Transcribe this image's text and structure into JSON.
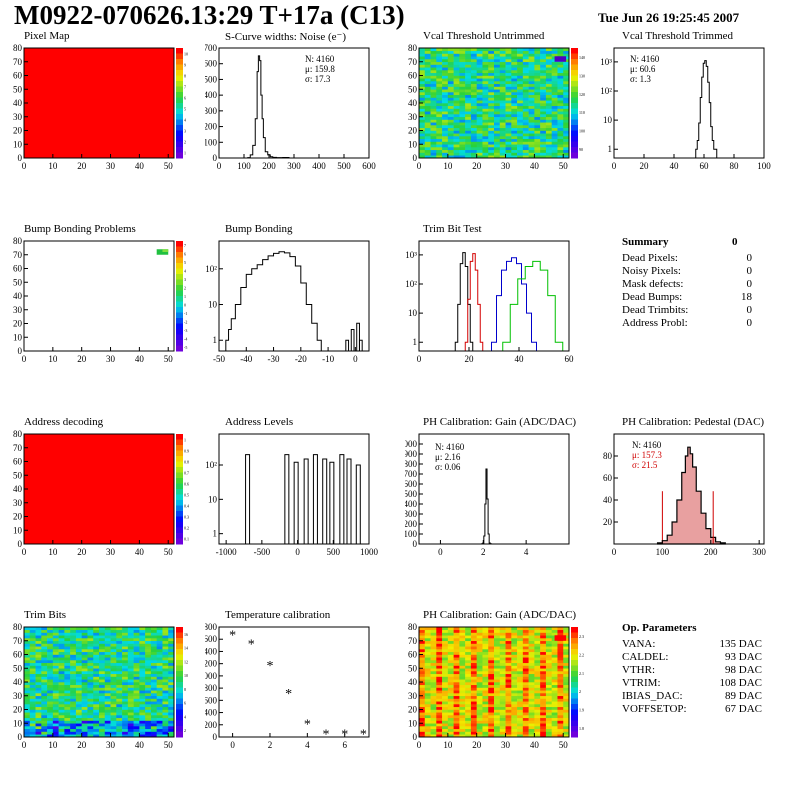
{
  "header": {
    "title": "M0922-070626.13:29 T+17a (C13)",
    "date": "Tue Jun 26 19:25:45 2007"
  },
  "colors": {
    "red_map": "#ff0000",
    "histo_line": "#000000",
    "trim_red": "#d40000",
    "trim_blue": "#0000cc",
    "trim_green": "#00c000",
    "pedestal_fill": "#e8a0a0"
  },
  "panels": {
    "pixel_map": {
      "title": "Pixel Map"
    },
    "scurve": {
      "title": "S-Curve widths: Noise (e⁻)",
      "stats": [
        "N: 4160",
        "μ: 159.8",
        "σ: 17.3"
      ]
    },
    "vcal_untrimmed": {
      "title": "Vcal Threshold Untrimmed"
    },
    "vcal_trimmed": {
      "title": "Vcal Threshold Trimmed",
      "stats": [
        "N: 4160",
        "μ: 60.6",
        "σ:  1.3"
      ]
    },
    "bump_problems": {
      "title": "Bump Bonding Problems"
    },
    "bump_bonding": {
      "title": "Bump Bonding"
    },
    "trim_bit_test": {
      "title": "Trim Bit Test"
    },
    "address_decoding": {
      "title": "Address decoding"
    },
    "address_levels": {
      "title": "Address Levels"
    },
    "ph_gain": {
      "title": "PH Calibration: Gain (ADC/DAC)",
      "stats": [
        "N: 4160",
        "μ: 2.16",
        "σ: 0.06"
      ]
    },
    "ph_pedestal": {
      "title": "PH Calibration: Pedestal (DAC)",
      "stats": [
        "N: 4160",
        "μ: 157.3",
        "σ: 21.5"
      ]
    },
    "trim_bits": {
      "title": "Trim Bits"
    },
    "temperature": {
      "title": "Temperature calibration"
    },
    "ph_gain_map": {
      "title": "PH Calibration: Gain (ADC/DAC)"
    }
  },
  "summary": {
    "title": "Summary",
    "total": "0",
    "rows": [
      {
        "label": "Dead Pixels:",
        "value": "0"
      },
      {
        "label": "Noisy Pixels:",
        "value": "0"
      },
      {
        "label": "Mask defects:",
        "value": "0"
      },
      {
        "label": "Dead Bumps:",
        "value": "18"
      },
      {
        "label": "Dead Trimbits:",
        "value": "0"
      },
      {
        "label": "Address Probl:",
        "value": "0"
      }
    ]
  },
  "op_params": {
    "title": "Op. Parameters",
    "rows": [
      {
        "label": "VANA:",
        "value": "135 DAC"
      },
      {
        "label": "CALDEL:",
        "value": "93 DAC"
      },
      {
        "label": "VTHR:",
        "value": "98 DAC"
      },
      {
        "label": "VTRIM:",
        "value": "108 DAC"
      },
      {
        "label": "IBIAS_DAC:",
        "value": "89 DAC"
      },
      {
        "label": "VOFFSETOP:",
        "value": "67 DAC"
      }
    ]
  },
  "chart_data": [
    {
      "id": "pixel_map",
      "type": "heatmap",
      "title": "Pixel Map",
      "xlim": [
        0,
        52
      ],
      "ylim": [
        0,
        80
      ],
      "xticks": [
        0,
        10,
        20,
        30,
        40,
        50
      ],
      "yticks": [
        0,
        10,
        20,
        30,
        40,
        50,
        60,
        70,
        80
      ],
      "fill": "uniform-max",
      "colorbar_ticks": [
        "10",
        "9",
        "8",
        "7",
        "6",
        "5",
        "4",
        "3",
        "2",
        "1"
      ]
    },
    {
      "id": "scurve",
      "type": "line",
      "title": "S-Curve widths: Noise (e⁻)",
      "xlim": [
        0,
        600
      ],
      "ylim": [
        0,
        700
      ],
      "xticks": [
        0,
        100,
        200,
        300,
        400,
        500,
        600
      ],
      "yticks": [
        0,
        100,
        200,
        300,
        400,
        500,
        600,
        700
      ],
      "x": [
        110,
        120,
        130,
        140,
        150,
        155,
        160,
        165,
        170,
        175,
        180,
        190,
        200,
        210,
        220,
        240,
        270,
        290
      ],
      "y": [
        0,
        2,
        20,
        80,
        250,
        550,
        650,
        620,
        400,
        250,
        130,
        40,
        20,
        8,
        4,
        2,
        3,
        0
      ]
    },
    {
      "id": "vcal_untrimmed",
      "type": "heatmap",
      "title": "Vcal Threshold Untrimmed",
      "xlim": [
        0,
        52
      ],
      "ylim": [
        0,
        80
      ],
      "xticks": [
        0,
        10,
        20,
        30,
        40,
        50
      ],
      "yticks": [
        0,
        10,
        20,
        30,
        40,
        50,
        60,
        70,
        80
      ],
      "fill": "noisy-mid",
      "colorbar_ticks": [
        "140",
        "130",
        "120",
        "110",
        "100",
        "90"
      ]
    },
    {
      "id": "vcal_trimmed",
      "type": "line",
      "title": "Vcal Threshold Trimmed",
      "log_y": true,
      "xlim": [
        0,
        100
      ],
      "ylim": [
        0.5,
        3000
      ],
      "xticks": [
        0,
        20,
        40,
        60,
        80,
        100
      ],
      "yticks": [
        "1",
        "10",
        "10²",
        "10³"
      ],
      "x": [
        55,
        56,
        57,
        58,
        59,
        60,
        61,
        62,
        63,
        64,
        65,
        66,
        67,
        68
      ],
      "y": [
        1,
        2,
        8,
        60,
        300,
        900,
        1100,
        700,
        200,
        40,
        6,
        2,
        1,
        1
      ]
    },
    {
      "id": "bump_problems",
      "type": "heatmap",
      "title": "Bump Bonding Problems",
      "xlim": [
        0,
        52
      ],
      "ylim": [
        0,
        80
      ],
      "xticks": [
        0,
        10,
        20,
        30,
        40,
        50
      ],
      "yticks": [
        0,
        10,
        20,
        30,
        40,
        50,
        60,
        70,
        80
      ],
      "fill": "sparse-corner",
      "colorbar_ticks": [
        "7",
        "6",
        "5",
        "4",
        "3",
        "2",
        "1",
        "0",
        "-1",
        "-2",
        "-3",
        "-4",
        "-5"
      ]
    },
    {
      "id": "bump_bonding",
      "type": "line",
      "title": "Bump Bonding",
      "log_y": true,
      "xlim": [
        -50,
        5
      ],
      "ylim": [
        0.5,
        600
      ],
      "xticks": [
        -50,
        -40,
        -30,
        -20,
        -10,
        0
      ],
      "yticks": [
        "1",
        "10",
        "10²"
      ],
      "x": [
        -47,
        -46,
        -45,
        -43,
        -41,
        -39,
        -37,
        -35,
        -33,
        -31,
        -29,
        -27,
        -25,
        -23,
        -21,
        -19,
        -17,
        -15,
        -13,
        -12
      ],
      "y": [
        1,
        2,
        4,
        10,
        30,
        70,
        100,
        130,
        180,
        230,
        270,
        300,
        280,
        220,
        120,
        40,
        10,
        3,
        1,
        0.5
      ]
    },
    {
      "id": "trim_bit_test",
      "type": "line",
      "title": "Trim Bit Test",
      "log_y": true,
      "xlim": [
        0,
        60
      ],
      "ylim": [
        0.5,
        3000
      ],
      "xticks": [
        0,
        20,
        40,
        60
      ],
      "yticks": [
        "1",
        "10",
        "10²",
        "10³"
      ],
      "series": [
        {
          "color": "black",
          "x": [
            15,
            16,
            17,
            18,
            19,
            20,
            21
          ],
          "y": [
            1,
            20,
            500,
            1200,
            400,
            20,
            1
          ]
        },
        {
          "color": "red",
          "x": [
            19,
            20,
            21,
            22,
            23,
            24,
            25
          ],
          "y": [
            1,
            30,
            600,
            1100,
            300,
            20,
            1
          ]
        },
        {
          "color": "blue",
          "x": [
            30,
            32,
            34,
            36,
            38,
            40,
            42,
            44,
            46
          ],
          "y": [
            1,
            40,
            300,
            600,
            800,
            500,
            100,
            10,
            1
          ]
        },
        {
          "color": "green",
          "x": [
            35,
            38,
            41,
            44,
            47,
            50,
            53,
            56
          ],
          "y": [
            1,
            20,
            150,
            400,
            600,
            300,
            40,
            1
          ]
        }
      ]
    },
    {
      "id": "address_decoding",
      "type": "heatmap",
      "title": "Address decoding",
      "xlim": [
        0,
        52
      ],
      "ylim": [
        0,
        80
      ],
      "xticks": [
        0,
        10,
        20,
        30,
        40,
        50
      ],
      "yticks": [
        0,
        10,
        20,
        30,
        40,
        50,
        60,
        70,
        80
      ],
      "fill": "uniform-max",
      "colorbar_ticks": [
        "1",
        "0.9",
        "0.8",
        "0.7",
        "0.6",
        "0.5",
        "0.4",
        "0.3",
        "0.2",
        "0.1"
      ]
    },
    {
      "id": "address_levels",
      "type": "line",
      "title": "Address Levels",
      "log_y": true,
      "xlim": [
        -1100,
        1000
      ],
      "ylim": [
        0.5,
        800
      ],
      "xticks": [
        -1000,
        -500,
        0,
        500,
        1000
      ],
      "yticks": [
        "1",
        "10",
        "10²"
      ],
      "peaks": [
        -700,
        -150,
        -20,
        120,
        250,
        380,
        480,
        620,
        720,
        850
      ],
      "peak_heights": [
        200,
        200,
        120,
        150,
        200,
        150,
        120,
        200,
        150,
        100
      ]
    },
    {
      "id": "ph_gain",
      "type": "line",
      "title": "PH Calibration: Gain (ADC/DAC)",
      "xlim": [
        -1,
        6
      ],
      "ylim": [
        0,
        1100
      ],
      "xticks": [
        0,
        2,
        4
      ],
      "yticks": [
        0,
        100,
        200,
        300,
        400,
        500,
        600,
        700,
        800,
        900,
        1000
      ],
      "x": [
        1.95,
        2.0,
        2.05,
        2.1,
        2.15,
        2.2,
        2.25,
        2.3,
        2.35
      ],
      "y": [
        2,
        10,
        80,
        400,
        750,
        450,
        100,
        10,
        2
      ]
    },
    {
      "id": "ph_pedestal",
      "type": "line",
      "title": "PH Calibration: Pedestal (DAC)",
      "xlim": [
        0,
        310
      ],
      "ylim": [
        0,
        100
      ],
      "xticks": [
        0,
        100,
        200,
        300
      ],
      "yticks": [
        20,
        40,
        60,
        80
      ],
      "x": [
        95,
        105,
        115,
        125,
        135,
        145,
        150,
        155,
        160,
        165,
        175,
        185,
        195,
        205,
        215,
        225
      ],
      "y": [
        1,
        3,
        8,
        20,
        40,
        65,
        80,
        88,
        82,
        70,
        48,
        28,
        14,
        6,
        2,
        1
      ]
    },
    {
      "id": "trim_bits",
      "type": "heatmap",
      "title": "Trim Bits",
      "xlim": [
        0,
        52
      ],
      "ylim": [
        0,
        80
      ],
      "xticks": [
        0,
        10,
        20,
        30,
        40,
        50
      ],
      "yticks": [
        0,
        10,
        20,
        30,
        40,
        50,
        60,
        70,
        80
      ],
      "fill": "noisy-mid",
      "colorbar_ticks": [
        "16",
        "14",
        "12",
        "10",
        "8",
        "6",
        "4",
        "2"
      ]
    },
    {
      "id": "temperature",
      "type": "scatter",
      "title": "Temperature calibration",
      "xlim": [
        -0.3,
        7.3
      ],
      "ylim": [
        0,
        1800
      ],
      "xticks": [
        0,
        2,
        4,
        6
      ],
      "yticks": [
        0,
        200,
        400,
        600,
        800,
        1000,
        1200,
        1400,
        1600,
        1800
      ],
      "x": [
        0,
        1,
        2,
        3,
        4,
        5,
        6,
        7
      ],
      "y": [
        1680,
        1530,
        1180,
        720,
        220,
        60,
        60,
        60
      ]
    },
    {
      "id": "ph_gain_map",
      "type": "heatmap",
      "title": "PH Calibration: Gain (ADC/DAC)",
      "xlim": [
        0,
        52
      ],
      "ylim": [
        0,
        80
      ],
      "xticks": [
        0,
        10,
        20,
        30,
        40,
        50
      ],
      "yticks": [
        0,
        10,
        20,
        30,
        40,
        50,
        60,
        70,
        80
      ],
      "fill": "striped-high",
      "colorbar_ticks": [
        "2.3",
        "2.2",
        "2.1",
        "2",
        "1.9",
        "1.8"
      ]
    }
  ]
}
